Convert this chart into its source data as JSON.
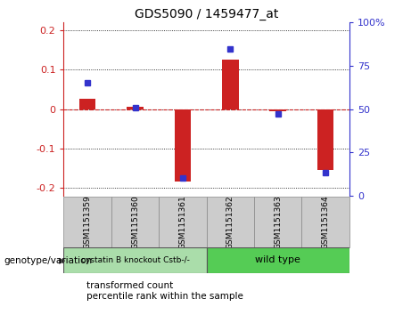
{
  "title": "GDS5090 / 1459477_at",
  "samples": [
    "GSM1151359",
    "GSM1151360",
    "GSM1151361",
    "GSM1151362",
    "GSM1151363",
    "GSM1151364"
  ],
  "red_values": [
    0.025,
    0.005,
    -0.185,
    0.125,
    -0.005,
    -0.155
  ],
  "blue_percentiles": [
    65,
    51,
    10,
    85,
    47,
    13
  ],
  "ylim_left": [
    -0.22,
    0.22
  ],
  "ylim_right": [
    0,
    100
  ],
  "yticks_left": [
    -0.2,
    -0.1,
    0.0,
    0.1,
    0.2
  ],
  "ytick_labels_left": [
    "-0.2",
    "-0.1",
    "0",
    "0.1",
    "0.2"
  ],
  "yticks_right": [
    0,
    25,
    50,
    75,
    100
  ],
  "ytick_labels_right": [
    "0",
    "25",
    "50",
    "75",
    "100%"
  ],
  "red_color": "#cc2222",
  "blue_color": "#3333cc",
  "bg_color": "#ffffff",
  "plot_bg": "#ffffff",
  "group1_label": "cystatin B knockout Cstb-/-",
  "group2_label": "wild type",
  "group1_color": "#aaddaa",
  "group2_color": "#55cc55",
  "xlabel_annotation": "genotype/variation",
  "legend_red": "transformed count",
  "legend_blue": "percentile rank within the sample",
  "bar_width": 0.35,
  "blue_marker_size": 5,
  "sample_box_color": "#cccccc",
  "sample_box_edge": "#888888"
}
